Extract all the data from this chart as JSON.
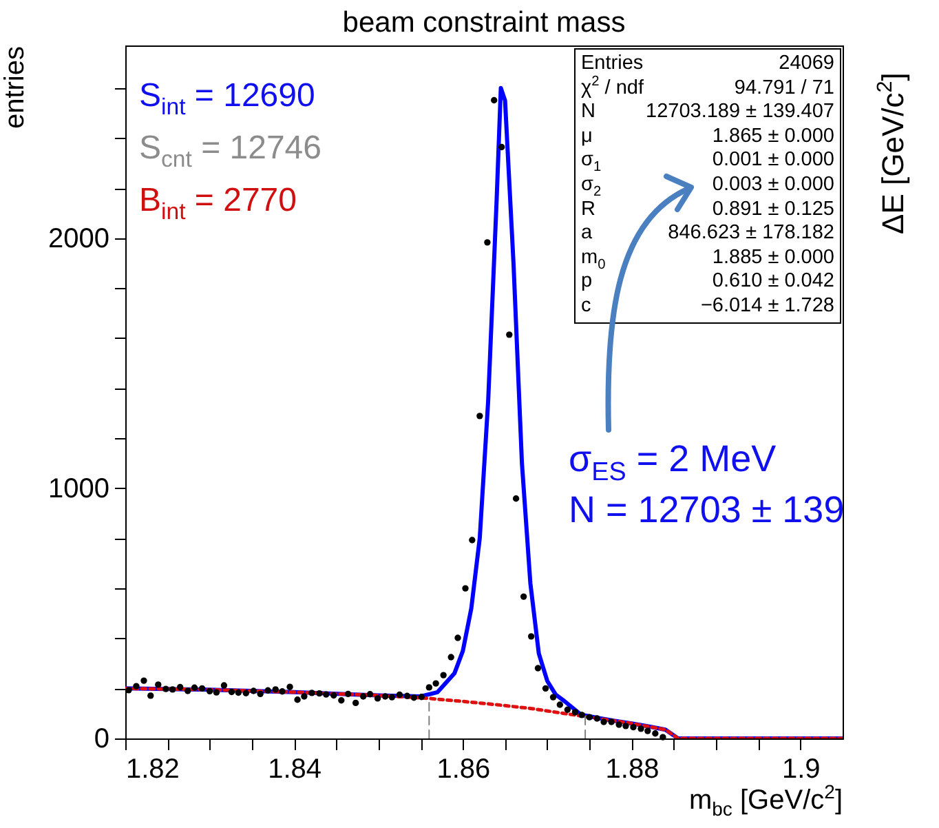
{
  "chart_data": {
    "type": "scatter",
    "title": "beam constraint mass",
    "xlabel": "m$_{bc}$ [GeV/c$^{2}$]",
    "ylabel": "entries",
    "xlim": [
      1.82,
      1.905
    ],
    "ylim": [
      0,
      2770
    ],
    "xticks": [
      1.82,
      {
        "value": 1.825,
        "label": null
      },
      {
        "value": 1.83,
        "label": null
      },
      {
        "value": 1.835,
        "label": null
      },
      1.84,
      {
        "value": 1.845,
        "label": null
      },
      {
        "value": 1.85,
        "label": null
      },
      {
        "value": 1.855,
        "label": null
      },
      1.86,
      {
        "value": 1.865,
        "label": null
      },
      {
        "value": 1.87,
        "label": null
      },
      {
        "value": 1.875,
        "label": null
      },
      1.88,
      {
        "value": 1.885,
        "label": null
      },
      {
        "value": 1.89,
        "label": null
      },
      {
        "value": 1.895,
        "label": null
      },
      {
        "value": 1.9,
        "label": "1.9"
      }
    ],
    "yticks": [
      0,
      {
        "value": 200,
        "label": null
      },
      {
        "value": 400,
        "label": null
      },
      {
        "value": 600,
        "label": null
      },
      {
        "value": 800,
        "label": null
      },
      1000,
      {
        "value": 1200,
        "label": null
      },
      {
        "value": 1400,
        "label": null
      },
      {
        "value": 1600,
        "label": null
      },
      {
        "value": 1800,
        "label": null
      },
      2000,
      {
        "value": 2200,
        "label": null
      },
      {
        "value": 2400,
        "label": null
      },
      {
        "value": 2600,
        "label": null
      }
    ],
    "grid": false,
    "series": [
      {
        "marker": "circle",
        "color": "#000000",
        "x": [
          1.8204,
          1.8213,
          1.8222,
          1.823,
          1.8239,
          1.8248,
          1.8256,
          1.8265,
          1.8274,
          1.8282,
          1.8291,
          1.83,
          1.8308,
          1.8317,
          1.8326,
          1.8334,
          1.8343,
          1.8352,
          1.836,
          1.8369,
          1.8378,
          1.8386,
          1.8395,
          1.8404,
          1.8412,
          1.8421,
          1.843,
          1.8438,
          1.8447,
          1.8456,
          1.8464,
          1.8473,
          1.8482,
          1.849,
          1.8499,
          1.8508,
          1.8516,
          1.8525,
          1.8534,
          1.8542,
          1.8551,
          1.856,
          1.8568,
          1.8577,
          1.8586,
          1.8594,
          1.8603,
          1.8611,
          1.862,
          1.8629,
          1.8637,
          1.8646,
          1.8655,
          1.8663,
          1.8672,
          1.8681,
          1.8689,
          1.8698,
          1.8707,
          1.8715,
          1.8724,
          1.8733,
          1.8741,
          1.875,
          1.8759,
          1.8767,
          1.8776,
          1.8785,
          1.8793,
          1.8802,
          1.8811,
          1.8819,
          1.8828,
          1.8837
        ],
        "values": [
          193,
          209,
          231,
          171,
          215,
          198,
          196,
          205,
          190,
          203,
          200,
          189,
          184,
          212,
          186,
          183,
          181,
          190,
          178,
          192,
          196,
          188,
          206,
          155,
          168,
          182,
          180,
          176,
          172,
          152,
          178,
          142,
          168,
          177,
          160,
          168,
          165,
          175,
          170,
          163,
          166,
          204,
          220,
          253,
          325,
          402,
          600,
          793,
          1289,
          1983,
          2551,
          2364,
          1614,
          959,
          567,
          408,
          281,
          200,
          165,
          135,
          115,
          105,
          94,
          85,
          80,
          66,
          66,
          55,
          50,
          45,
          39,
          30,
          20,
          5
        ]
      },
      {
        "type": "line",
        "color": "#0000ff",
        "line_style": "solid",
        "x": [
          1.82,
          1.83,
          1.84,
          1.85,
          1.855,
          1.857,
          1.859,
          1.86,
          1.861,
          1.862,
          1.863,
          1.864,
          1.8645,
          1.865,
          1.866,
          1.867,
          1.868,
          1.869,
          1.87,
          1.871,
          1.872,
          1.874,
          1.876,
          1.878,
          1.88,
          1.882,
          1.884,
          1.8855,
          1.905
        ],
        "values": [
          200,
          195,
          185,
          172,
          168,
          185,
          260,
          350,
          520,
          800,
          1350,
          2150,
          2600,
          2550,
          1900,
          1100,
          620,
          340,
          230,
          175,
          150,
          95,
          82,
          70,
          60,
          48,
          35,
          0,
          0
        ]
      },
      {
        "type": "line",
        "color": "#e01010",
        "line_style": "dotted",
        "x": [
          1.82,
          1.83,
          1.84,
          1.85,
          1.856,
          1.86,
          1.864,
          1.868,
          1.872,
          1.876,
          1.88,
          1.884,
          1.8855,
          1.905
        ],
        "values": [
          200,
          195,
          185,
          172,
          160,
          148,
          135,
          120,
          100,
          80,
          60,
          35,
          0,
          0
        ]
      },
      {
        "type": "line",
        "color": "#808080",
        "line_style": "dashed",
        "x": [
          1.856,
          1.856
        ],
        "values": [
          0,
          160
        ]
      },
      {
        "type": "line",
        "color": "#808080",
        "line_style": "dashed",
        "x": [
          1.8745,
          1.8745
        ],
        "values": [
          0,
          90
        ]
      }
    ],
    "annotations": [
      "S$_{int}$ = 12690",
      "S$_{cnt}$ = 12746",
      "B$_{int}$ = 2770",
      "Entries",
      "24069",
      "χ$^{2}$ / ndf",
      "94.791 / 71",
      "N",
      "12703.189 ± 139.407",
      "μ",
      "1.865 ± 0.000",
      "σ$_{1}$",
      "0.001 ± 0.000",
      "σ$_{2}$",
      "0.003 ± 0.000",
      "R",
      "0.891 ± 0.125",
      "a",
      "846.623 ± 178.182",
      "m$_{0}$",
      "1.885 ± 0.000",
      "p",
      "0.610 ± 0.042",
      "c",
      "−6.014 ± 1.728",
      "σ$_{ES}$ = 2 MeV",
      "N = 12703 ± 139",
      "ΔE [GeV/c$^{2}$]"
    ]
  }
}
